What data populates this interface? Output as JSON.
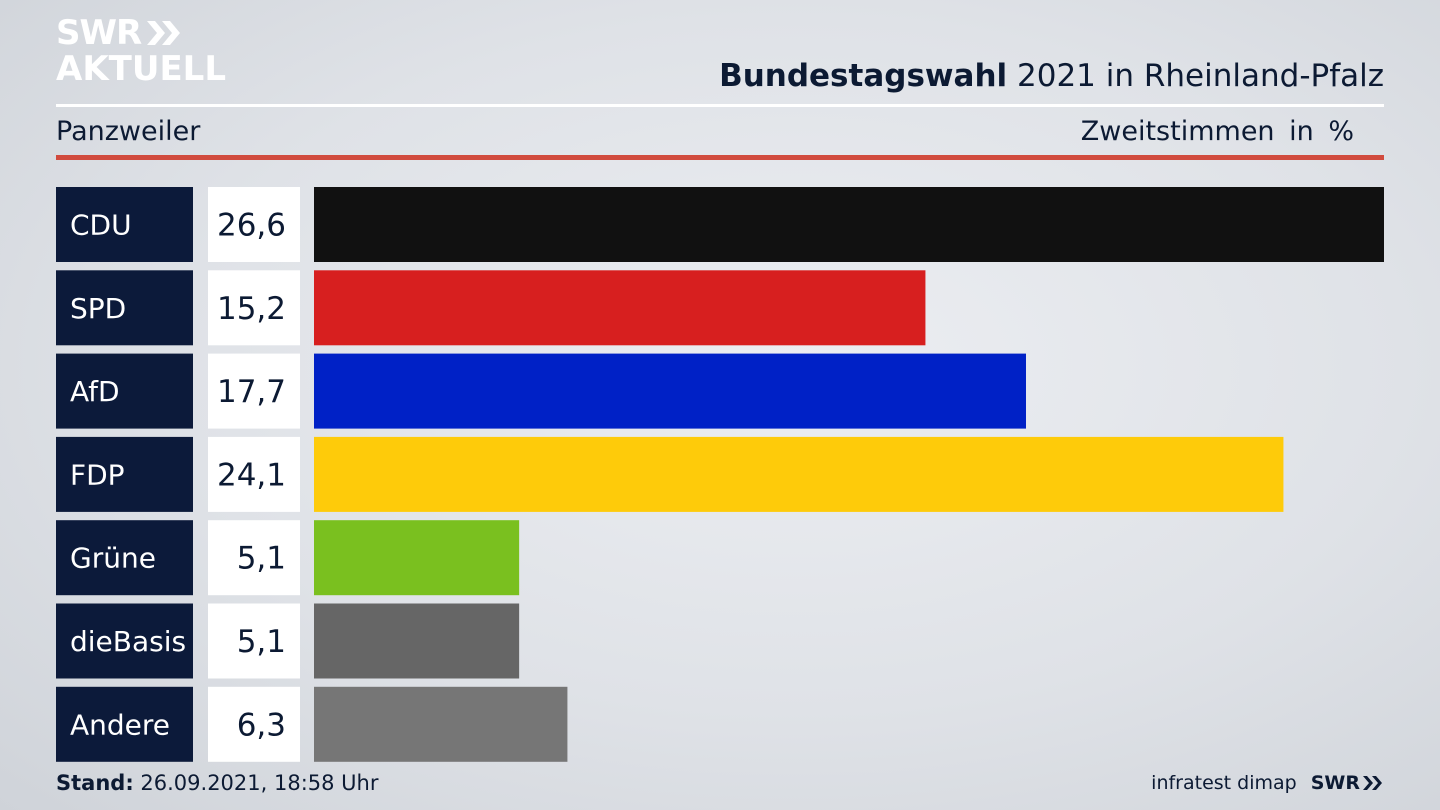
{
  "header": {
    "logo_line1": "SWR",
    "logo_line2": "AKTUELL",
    "title_bold": "Bundestagswahl",
    "title_rest": " 2021 in Rheinland-Pfalz",
    "region": "Panzweiler",
    "vote_type": "Zweitstimmen",
    "unit": "in %"
  },
  "footer": {
    "stand_label": "Stand:",
    "stand_value": " 26.09.2021, 18:58 Uhr",
    "source": "infratest dimap",
    "brand": "SWR"
  },
  "colors": {
    "label_bg": "#0c1a3a",
    "value_bg": "#ffffff",
    "accent_rule": "#d14b3e"
  },
  "chart_data": {
    "type": "bar",
    "orientation": "horizontal",
    "categories": [
      "CDU",
      "SPD",
      "AfD",
      "FDP",
      "Grüne",
      "dieBasis",
      "Andere"
    ],
    "values": [
      26.6,
      15.2,
      17.7,
      24.1,
      5.1,
      5.1,
      6.3
    ],
    "value_labels": [
      "26,6",
      "15,2",
      "17,7",
      "24,1",
      "5,1",
      "5,1",
      "6,3"
    ],
    "bar_colors": [
      "#111111",
      "#d71f1f",
      "#0021c6",
      "#fecb0a",
      "#7ac01f",
      "#666666",
      "#767676"
    ],
    "xlim": [
      0,
      26.6
    ],
    "grid": false,
    "legend": "none"
  }
}
